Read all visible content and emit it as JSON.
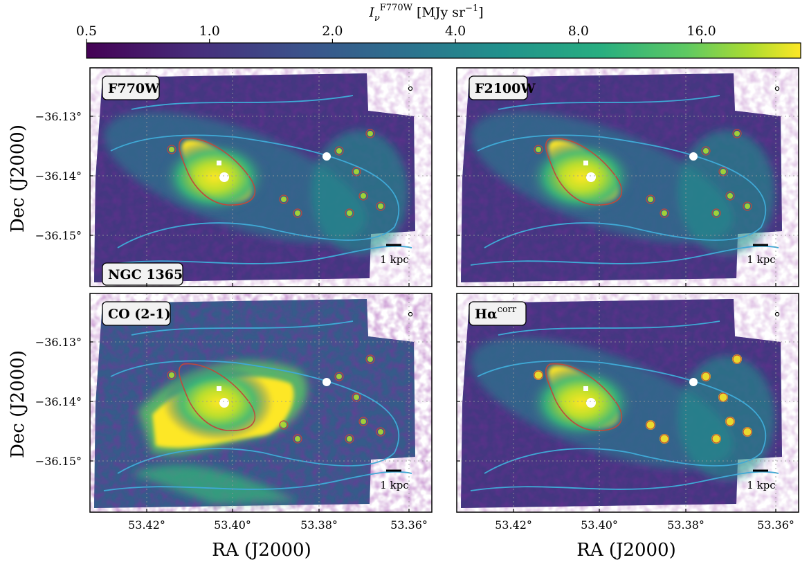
{
  "colorbar": {
    "label_main": "I",
    "label_sub": "ν",
    "label_sup": "F770W",
    "label_unit_prefix": "[MJy sr",
    "label_unit_exp": "−1",
    "label_unit_suffix": "]",
    "ticks": [
      "0.5",
      "1.0",
      "2.0",
      "4.0",
      "8.0",
      "16.0"
    ],
    "tick_values": [
      0.5,
      1.0,
      2.0,
      4.0,
      8.0,
      16.0
    ],
    "range": [
      0.5,
      28
    ],
    "scale": "log",
    "colormap": "viridis",
    "colors": [
      "#440154",
      "#3b528b",
      "#21918c",
      "#5ec962",
      "#fde725"
    ]
  },
  "axes": {
    "ylabel": "Dec (J2000)",
    "xlabel": "RA (J2000)",
    "yticks": [
      "−36.13°",
      "−36.14°",
      "−36.15°"
    ],
    "ytick_values": [
      -36.13,
      -36.14,
      -36.15
    ],
    "xticks": [
      "53.42°",
      "53.40°",
      "53.38°",
      "53.36°"
    ],
    "xtick_values": [
      53.42,
      53.4,
      53.38,
      53.36
    ]
  },
  "contours": {
    "outer_color": "#3fa9d6",
    "inner_color": "#c0483a"
  },
  "panels": [
    {
      "label": "F770W",
      "scale_bar": "1 kpc",
      "extra_label": "NGC 1365"
    },
    {
      "label": "F2100W",
      "scale_bar": "1 kpc"
    },
    {
      "label": "CO (2-1)",
      "scale_bar": "1 kpc"
    },
    {
      "label": "Hα",
      "label_sup": "corr",
      "scale_bar": "1 kpc"
    }
  ]
}
